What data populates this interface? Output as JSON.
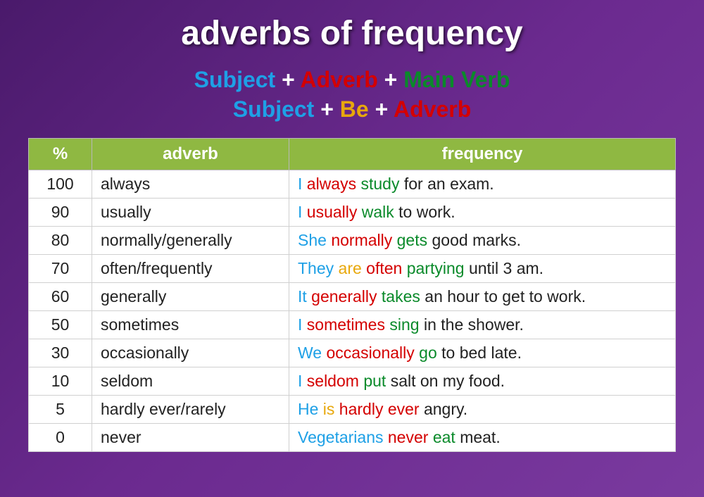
{
  "title": "adverbs of frequency",
  "colors": {
    "subject": "#1ea0e6",
    "adverb": "#d40000",
    "verb": "#0a8a2a",
    "be": "#e8a80c",
    "rest": "#222222",
    "header_bg": "#8fb842",
    "header_text": "#ffffff",
    "plus": "#ffffff"
  },
  "formulas": [
    [
      {
        "text": "Subject",
        "role": "subject"
      },
      {
        "text": " + ",
        "role": "plus"
      },
      {
        "text": "Adverb",
        "role": "adverb"
      },
      {
        "text": " + ",
        "role": "plus"
      },
      {
        "text": "Main Verb",
        "role": "verb"
      }
    ],
    [
      {
        "text": "Subject",
        "role": "subject"
      },
      {
        "text": " + ",
        "role": "plus"
      },
      {
        "text": "Be",
        "role": "be"
      },
      {
        "text": " + ",
        "role": "plus"
      },
      {
        "text": "Adverb",
        "role": "adverb"
      }
    ]
  ],
  "table": {
    "headers": {
      "pct": "%",
      "adverb": "adverb",
      "frequency": "frequency"
    },
    "col_widths": {
      "pct": 90,
      "adverb": 280
    },
    "font_size": 23,
    "header_font_size": 24,
    "rows": [
      {
        "pct": "100",
        "adverb": "always",
        "sentence": [
          {
            "text": "I ",
            "role": "subject"
          },
          {
            "text": "always ",
            "role": "adverb"
          },
          {
            "text": "study ",
            "role": "verb"
          },
          {
            "text": "for an exam.",
            "role": "rest"
          }
        ]
      },
      {
        "pct": "90",
        "adverb": "usually",
        "sentence": [
          {
            "text": "I ",
            "role": "subject"
          },
          {
            "text": "usually ",
            "role": "adverb"
          },
          {
            "text": "walk ",
            "role": "verb"
          },
          {
            "text": "to work.",
            "role": "rest"
          }
        ]
      },
      {
        "pct": "80",
        "adverb": "normally/generally",
        "sentence": [
          {
            "text": "She ",
            "role": "subject"
          },
          {
            "text": "normally ",
            "role": "adverb"
          },
          {
            "text": "gets ",
            "role": "verb"
          },
          {
            "text": "good marks.",
            "role": "rest"
          }
        ]
      },
      {
        "pct": "70",
        "adverb": "often/frequently",
        "sentence": [
          {
            "text": "They ",
            "role": "subject"
          },
          {
            "text": "are ",
            "role": "be"
          },
          {
            "text": "often ",
            "role": "adverb"
          },
          {
            "text": "partying ",
            "role": "verb"
          },
          {
            "text": "until 3 am.",
            "role": "rest"
          }
        ]
      },
      {
        "pct": "60",
        "adverb": "generally",
        "sentence": [
          {
            "text": "It ",
            "role": "subject"
          },
          {
            "text": "generally ",
            "role": "adverb"
          },
          {
            "text": "takes ",
            "role": "verb"
          },
          {
            "text": "an hour to get to work.",
            "role": "rest"
          }
        ]
      },
      {
        "pct": "50",
        "adverb": "sometimes",
        "sentence": [
          {
            "text": "I ",
            "role": "subject"
          },
          {
            "text": "sometimes ",
            "role": "adverb"
          },
          {
            "text": "sing ",
            "role": "verb"
          },
          {
            "text": "in the shower.",
            "role": "rest"
          }
        ]
      },
      {
        "pct": "30",
        "adverb": "occasionally",
        "sentence": [
          {
            "text": "We ",
            "role": "subject"
          },
          {
            "text": "occasionally ",
            "role": "adverb"
          },
          {
            "text": "go ",
            "role": "verb"
          },
          {
            "text": "to bed late.",
            "role": "rest"
          }
        ]
      },
      {
        "pct": "10",
        "adverb": "seldom",
        "sentence": [
          {
            "text": "I ",
            "role": "subject"
          },
          {
            "text": "seldom ",
            "role": "adverb"
          },
          {
            "text": "put ",
            "role": "verb"
          },
          {
            "text": "salt on my food.",
            "role": "rest"
          }
        ]
      },
      {
        "pct": "5",
        "adverb": "hardly ever/rarely",
        "sentence": [
          {
            "text": "He ",
            "role": "subject"
          },
          {
            "text": "is ",
            "role": "be"
          },
          {
            "text": "hardly ever ",
            "role": "adverb"
          },
          {
            "text": "angry.",
            "role": "rest"
          }
        ]
      },
      {
        "pct": "0",
        "adverb": "never",
        "sentence": [
          {
            "text": "Vegetarians ",
            "role": "subject"
          },
          {
            "text": "never ",
            "role": "adverb"
          },
          {
            "text": "eat ",
            "role": "verb"
          },
          {
            "text": "meat.",
            "role": "rest"
          }
        ]
      }
    ]
  }
}
